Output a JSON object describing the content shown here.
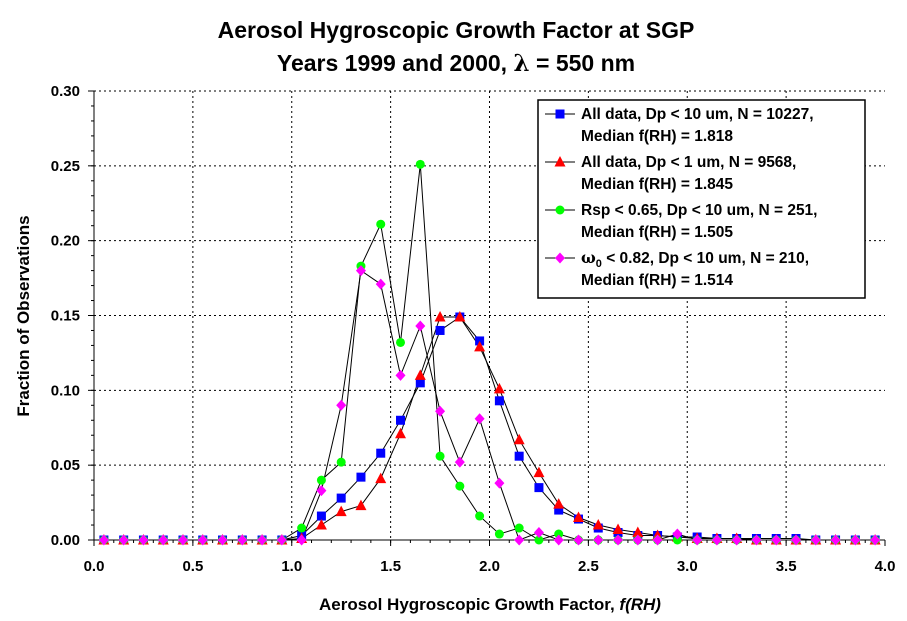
{
  "chart_data": {
    "type": "line",
    "title_line1": "Aerosol Hygroscopic Growth Factor at SGP",
    "title_line2_prefix": "Years 1999 and 2000, ",
    "title_lambda": "λ",
    "title_line2_suffix": " = 550 nm",
    "xlabel_text": "Aerosol Hygroscopic Growth Factor, ",
    "xlabel_italic": "f(RH)",
    "ylabel": "Fraction of Observations",
    "xlim": [
      0.0,
      4.0
    ],
    "ylim": [
      0.0,
      0.3
    ],
    "xticks": [
      "0.0",
      "0.5",
      "1.0",
      "1.5",
      "2.0",
      "2.5",
      "3.0",
      "3.5",
      "4.0"
    ],
    "yticks": [
      "0.00",
      "0.05",
      "0.10",
      "0.15",
      "0.20",
      "0.25",
      "0.30"
    ],
    "grid": true,
    "legend_position": "top-right",
    "x": [
      0.05,
      0.15,
      0.25,
      0.35,
      0.45,
      0.55,
      0.65,
      0.75,
      0.85,
      0.95,
      1.05,
      1.15,
      1.25,
      1.35,
      1.45,
      1.55,
      1.65,
      1.75,
      1.85,
      1.95,
      2.05,
      2.15,
      2.25,
      2.35,
      2.45,
      2.55,
      2.65,
      2.75,
      2.85,
      2.95,
      3.05,
      3.15,
      3.25,
      3.35,
      3.45,
      3.55,
      3.65,
      3.75,
      3.85,
      3.95
    ],
    "series": [
      {
        "line1": "All data, Dp < 10 um, N = 10227,",
        "line2": "Median f(RH) = 1.818",
        "color": "#0000ff",
        "marker": "square",
        "values": [
          0,
          0,
          0,
          0,
          0,
          0,
          0,
          0,
          0,
          0,
          0.003,
          0.016,
          0.028,
          0.042,
          0.058,
          0.08,
          0.105,
          0.14,
          0.149,
          0.133,
          0.093,
          0.056,
          0.035,
          0.02,
          0.014,
          0.008,
          0.005,
          0.003,
          0.003,
          0.002,
          0.002,
          0.001,
          0.001,
          0.001,
          0.001,
          0.001,
          0,
          0,
          0,
          0
        ]
      },
      {
        "line1": "All data, Dp < 1 um, N = 9568,",
        "line2": "Median f(RH) = 1.845",
        "color": "#ff0000",
        "marker": "triangle",
        "values": [
          0,
          0,
          0,
          0,
          0,
          0,
          0,
          0,
          0,
          0,
          0.001,
          0.01,
          0.019,
          0.023,
          0.041,
          0.071,
          0.11,
          0.149,
          0.149,
          0.129,
          0.101,
          0.067,
          0.045,
          0.024,
          0.015,
          0.01,
          0.007,
          0.005,
          0.003,
          0.002,
          0.001,
          0.001,
          0.001,
          0,
          0,
          0,
          0,
          0,
          0,
          0
        ]
      },
      {
        "line1": "Rsp < 0.65, Dp < 10 um, N = 251,",
        "line2": "Median f(RH) = 1.505",
        "color": "#00ff00",
        "marker": "circle",
        "values": [
          0,
          0,
          0,
          0,
          0,
          0,
          0,
          0,
          0,
          0,
          0.008,
          0.04,
          0.052,
          0.183,
          0.211,
          0.132,
          0.251,
          0.056,
          0.036,
          0.016,
          0.004,
          0.008,
          0,
          0.004,
          0,
          0,
          0,
          0,
          0,
          0,
          0,
          0,
          0,
          0,
          0,
          0,
          0,
          0,
          0,
          0
        ]
      },
      {
        "line1_pre": "ω",
        "line1_sub": "0",
        "line1": " < 0.82, Dp < 10 um, N = 210,",
        "line2": "Median f(RH) = 1.514",
        "color": "#ff00ff",
        "marker": "diamond",
        "values": [
          0,
          0,
          0,
          0,
          0,
          0,
          0,
          0,
          0,
          0,
          0,
          0.033,
          0.09,
          0.18,
          0.171,
          0.11,
          0.143,
          0.086,
          0.052,
          0.081,
          0.038,
          0,
          0.005,
          0,
          0,
          0,
          0,
          0,
          0,
          0.004,
          0,
          0,
          0,
          0,
          0,
          0,
          0,
          0,
          0,
          0
        ]
      }
    ]
  }
}
